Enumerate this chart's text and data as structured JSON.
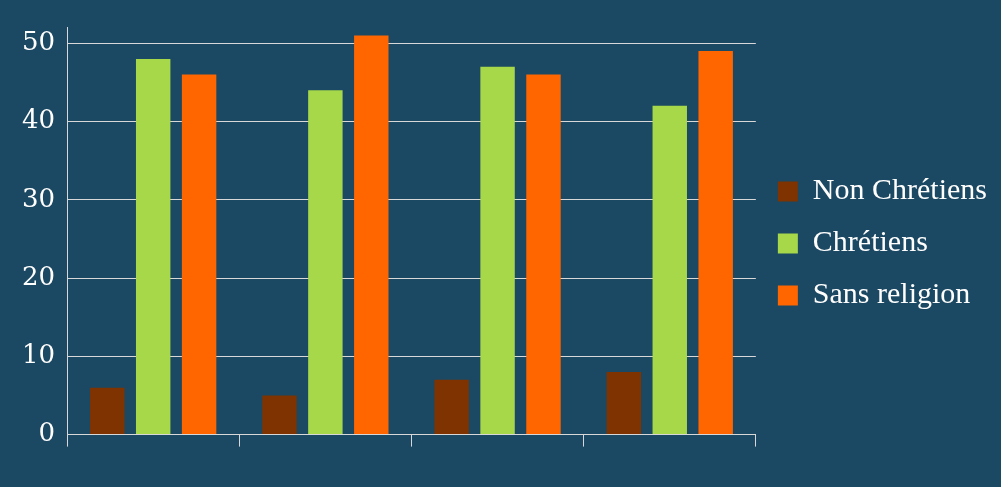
{
  "chart_data": {
    "type": "bar",
    "categories": [
      null,
      null,
      null,
      null
    ],
    "series": [
      {
        "name": "Non Chrétiens",
        "color": "#7f3300",
        "values": [
          6,
          5,
          7,
          8
        ]
      },
      {
        "name": "Chrétiens",
        "color": "#a6d84a",
        "values": [
          48,
          44,
          47,
          42
        ]
      },
      {
        "name": "Sans religion",
        "color": "#ff6600",
        "values": [
          46,
          51,
          46,
          49
        ]
      }
    ],
    "ylim": [
      0,
      52
    ],
    "yticks": [
      0,
      10,
      20,
      30,
      40,
      50
    ],
    "grid": "y",
    "legend": "right"
  }
}
